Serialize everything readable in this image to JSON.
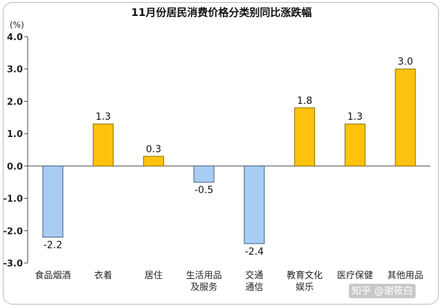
{
  "chart_data": {
    "type": "bar",
    "title": "11月份居民消费价格分类别同比涨跌幅",
    "unit_label": "(%)",
    "categories": [
      [
        "食品烟酒"
      ],
      [
        "衣着"
      ],
      [
        "居住"
      ],
      [
        "生活用品",
        "及服务"
      ],
      [
        "交通",
        "通信"
      ],
      [
        "教育文化",
        "娱乐"
      ],
      [
        "医疗保健"
      ],
      [
        "其他用品"
      ]
    ],
    "values": [
      -2.2,
      1.3,
      0.3,
      -0.5,
      -2.4,
      1.8,
      1.3,
      3.0
    ],
    "value_labels": [
      "-2.2",
      "1.3",
      "0.3",
      "-0.5",
      "-2.4",
      "1.8",
      "1.3",
      "3.0"
    ],
    "ylim": [
      -3.0,
      4.0
    ],
    "yticks": [
      "4.0",
      "3.0",
      "2.0",
      "1.0",
      "0.0",
      "-1.0",
      "-2.0",
      "-3.0"
    ],
    "ytick_values": [
      4,
      3,
      2,
      1,
      0,
      -1,
      -2,
      -3
    ],
    "grid": false,
    "legend": "none",
    "colors": {
      "positive": "#FFC20E",
      "positive_stroke": "#8a6a00",
      "negative": "#A8CDF5",
      "negative_stroke": "#3d5b80",
      "axis": "#444444"
    }
  },
  "watermark": "知乎 @谢筱白"
}
